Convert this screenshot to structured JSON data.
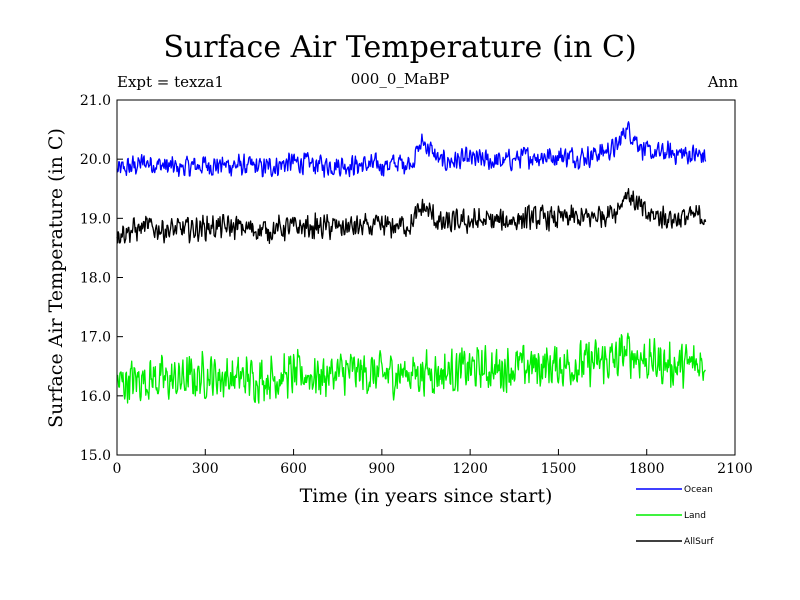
{
  "chart_data": {
    "type": "line",
    "title": "Surface Air Temperature (in C)",
    "left_label": "Expt = texza1",
    "center_label": "000_0_MaBP",
    "right_label": "Ann",
    "xlabel": "Time (in years since start)",
    "ylabel": "Surface Air Temperature (in C)",
    "xlim": [
      0,
      2100
    ],
    "ylim": [
      15.0,
      21.0
    ],
    "x_ticks": [
      "0",
      "300",
      "600",
      "900",
      "1200",
      "1500",
      "1800",
      "2100"
    ],
    "y_ticks": [
      "15.0",
      "16.0",
      "17.0",
      "18.0",
      "19.0",
      "20.0",
      "21.0"
    ],
    "grid": false,
    "legend_position": "bottom-right",
    "series": [
      {
        "name": "Ocean",
        "color": "#0000ff",
        "x": [
          0,
          100,
          200,
          300,
          400,
          500,
          600,
          700,
          800,
          900,
          1000,
          1040,
          1100,
          1200,
          1300,
          1400,
          1500,
          1600,
          1700,
          1730,
          1800,
          1900,
          2000
        ],
        "values": [
          19.8,
          19.95,
          19.85,
          19.9,
          19.9,
          19.85,
          19.95,
          19.9,
          19.9,
          19.9,
          19.95,
          20.3,
          19.95,
          20.0,
          19.95,
          20.05,
          20.05,
          20.05,
          20.2,
          20.55,
          20.1,
          20.1,
          20.05
        ]
      },
      {
        "name": "Land",
        "color": "#00ee00",
        "x": [
          0,
          100,
          200,
          300,
          400,
          500,
          600,
          700,
          800,
          900,
          1000,
          1100,
          1200,
          1300,
          1400,
          1500,
          1600,
          1700,
          1730,
          1800,
          1900,
          2000
        ],
        "values": [
          16.2,
          16.3,
          16.25,
          16.35,
          16.3,
          16.3,
          16.35,
          16.35,
          16.4,
          16.35,
          16.4,
          16.4,
          16.45,
          16.45,
          16.5,
          16.5,
          16.55,
          16.6,
          16.75,
          16.6,
          16.5,
          16.55
        ]
      },
      {
        "name": "AllSurf",
        "color": "#000000",
        "x": [
          0,
          100,
          200,
          300,
          400,
          500,
          600,
          700,
          800,
          900,
          1000,
          1040,
          1100,
          1200,
          1300,
          1400,
          1500,
          1600,
          1700,
          1730,
          1800,
          1900,
          2000
        ],
        "values": [
          18.75,
          18.85,
          18.8,
          18.85,
          18.85,
          18.8,
          18.85,
          18.85,
          18.85,
          18.85,
          18.9,
          19.2,
          18.9,
          18.95,
          18.95,
          19.0,
          19.0,
          19.0,
          19.15,
          19.45,
          19.05,
          19.0,
          19.05
        ]
      }
    ],
    "noise_amplitude": [
      0.22,
      0.45,
      0.25
    ]
  }
}
